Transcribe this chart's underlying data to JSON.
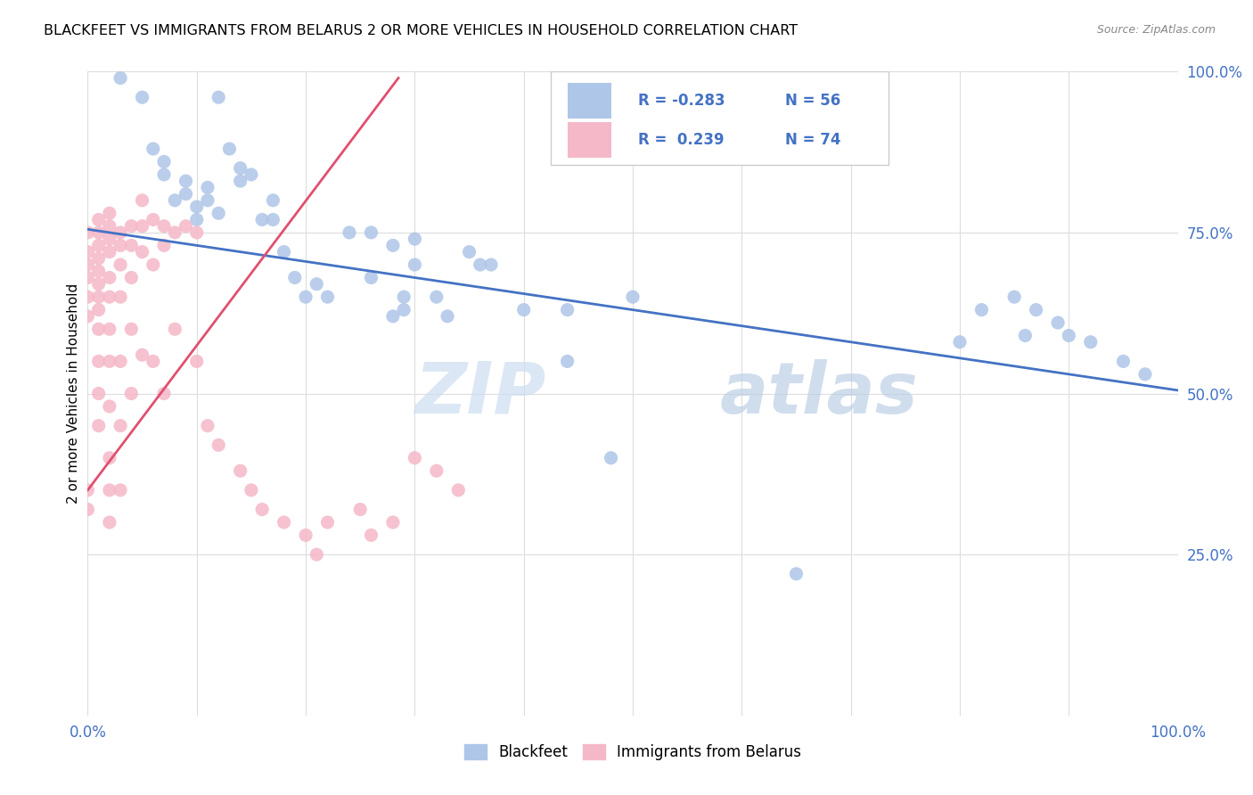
{
  "title": "BLACKFEET VS IMMIGRANTS FROM BELARUS 2 OR MORE VEHICLES IN HOUSEHOLD CORRELATION CHART",
  "source": "Source: ZipAtlas.com",
  "ylabel": "2 or more Vehicles in Household",
  "legend_r_blue": "R = -0.283",
  "legend_n_blue": "N = 56",
  "legend_r_pink": "R =  0.239",
  "legend_n_pink": "N = 74",
  "blue_color": "#aec6e8",
  "pink_color": "#f5b8c8",
  "trend_blue": "#4472c4",
  "trend_pink": "#e05070",
  "watermark_zip": "ZIP",
  "watermark_atlas": "atlas",
  "xlim": [
    0.0,
    1.0
  ],
  "ylim": [
    0.0,
    1.0
  ],
  "blue_x": [
    0.03,
    0.05,
    0.06,
    0.07,
    0.07,
    0.08,
    0.09,
    0.09,
    0.1,
    0.1,
    0.11,
    0.11,
    0.12,
    0.12,
    0.13,
    0.14,
    0.14,
    0.15,
    0.16,
    0.17,
    0.17,
    0.18,
    0.19,
    0.2,
    0.21,
    0.22,
    0.24,
    0.26,
    0.28,
    0.29,
    0.29,
    0.3,
    0.32,
    0.33,
    0.36,
    0.44,
    0.44,
    0.48,
    0.5,
    0.65,
    0.8,
    0.82,
    0.85,
    0.86,
    0.87,
    0.89,
    0.9,
    0.92,
    0.95,
    0.97,
    0.26,
    0.28,
    0.3,
    0.35,
    0.37,
    0.4
  ],
  "blue_y": [
    0.99,
    0.96,
    0.88,
    0.86,
    0.84,
    0.8,
    0.83,
    0.81,
    0.79,
    0.77,
    0.82,
    0.8,
    0.78,
    0.96,
    0.88,
    0.85,
    0.83,
    0.84,
    0.77,
    0.8,
    0.77,
    0.72,
    0.68,
    0.65,
    0.67,
    0.65,
    0.75,
    0.68,
    0.62,
    0.65,
    0.63,
    0.7,
    0.65,
    0.62,
    0.7,
    0.55,
    0.63,
    0.4,
    0.65,
    0.22,
    0.58,
    0.63,
    0.65,
    0.59,
    0.63,
    0.61,
    0.59,
    0.58,
    0.55,
    0.53,
    0.75,
    0.73,
    0.74,
    0.72,
    0.7,
    0.63
  ],
  "pink_x": [
    0.0,
    0.0,
    0.0,
    0.0,
    0.0,
    0.0,
    0.0,
    0.0,
    0.01,
    0.01,
    0.01,
    0.01,
    0.01,
    0.01,
    0.01,
    0.01,
    0.01,
    0.01,
    0.01,
    0.01,
    0.02,
    0.02,
    0.02,
    0.02,
    0.02,
    0.02,
    0.02,
    0.02,
    0.02,
    0.02,
    0.02,
    0.02,
    0.03,
    0.03,
    0.03,
    0.03,
    0.03,
    0.03,
    0.03,
    0.04,
    0.04,
    0.04,
    0.04,
    0.04,
    0.05,
    0.05,
    0.05,
    0.05,
    0.06,
    0.06,
    0.06,
    0.07,
    0.07,
    0.07,
    0.08,
    0.08,
    0.09,
    0.1,
    0.1,
    0.11,
    0.12,
    0.14,
    0.15,
    0.16,
    0.18,
    0.2,
    0.21,
    0.22,
    0.25,
    0.26,
    0.28,
    0.3,
    0.32,
    0.34
  ],
  "pink_y": [
    0.75,
    0.72,
    0.7,
    0.68,
    0.65,
    0.62,
    0.35,
    0.32,
    0.77,
    0.75,
    0.73,
    0.71,
    0.69,
    0.67,
    0.65,
    0.63,
    0.6,
    0.55,
    0.5,
    0.45,
    0.78,
    0.76,
    0.74,
    0.72,
    0.68,
    0.65,
    0.6,
    0.55,
    0.48,
    0.4,
    0.35,
    0.3,
    0.75,
    0.73,
    0.7,
    0.65,
    0.55,
    0.45,
    0.35,
    0.76,
    0.73,
    0.68,
    0.6,
    0.5,
    0.8,
    0.76,
    0.72,
    0.56,
    0.77,
    0.7,
    0.55,
    0.76,
    0.73,
    0.5,
    0.75,
    0.6,
    0.76,
    0.75,
    0.55,
    0.45,
    0.42,
    0.38,
    0.35,
    0.32,
    0.3,
    0.28,
    0.25,
    0.3,
    0.32,
    0.28,
    0.3,
    0.4,
    0.38,
    0.35
  ],
  "blue_trend_x": [
    0.0,
    1.0
  ],
  "blue_trend_y": [
    0.755,
    0.505
  ],
  "pink_trend_x": [
    0.0,
    0.285
  ],
  "pink_trend_y": [
    0.35,
    0.99
  ]
}
